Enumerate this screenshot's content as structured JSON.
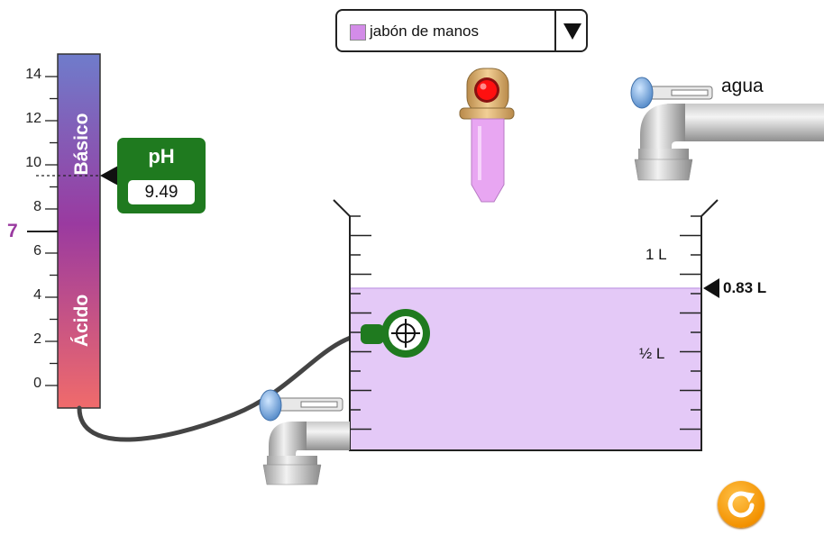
{
  "solute_selector": {
    "selected": "jabón de manos",
    "swatch_color": "#d38ce8"
  },
  "ph_scale": {
    "tick_labels": [
      "14",
      "12",
      "10",
      "8",
      "6",
      "4",
      "2",
      "0"
    ],
    "neutral_label": "7",
    "basic_label": "Básico",
    "acidic_label": "Ácido",
    "colors": {
      "basic": "#6f7ccb",
      "neutral": "#9a3aa0",
      "acidic": "#f06b6b"
    }
  },
  "ph_meter": {
    "title": "pH",
    "value": "9.49",
    "box_color": "#1f7a1f"
  },
  "water_faucet": {
    "label": "agua"
  },
  "beaker": {
    "mark_1l": "1 L",
    "mark_half_l": "½ L",
    "volume_label": "0.83 L",
    "volume_liters": 0.83,
    "liquid_color": "#e4c9f7"
  },
  "dropper": {
    "liquid_color": "#e8a6f2",
    "button_color": "#ff1010"
  },
  "reset_button": {
    "icon": "reset-icon",
    "color": "#f39200"
  }
}
